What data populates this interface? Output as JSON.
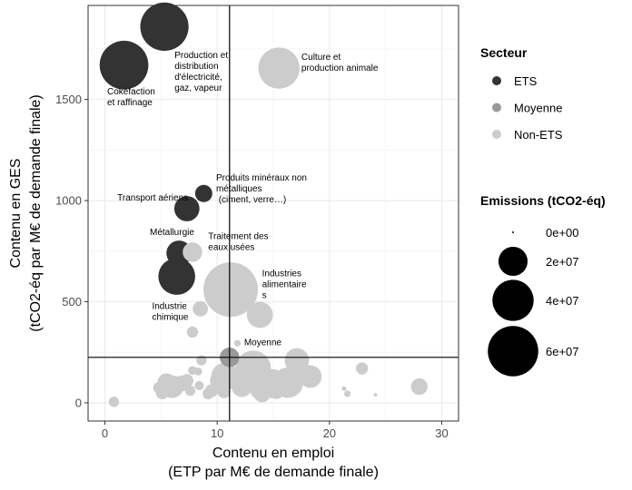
{
  "chart_data": {
    "type": "scatter",
    "xlabel": [
      "Contenu en emploi",
      "(ETP par M€ de demande finale)"
    ],
    "ylabel": [
      "Contenu en GES",
      "(tCO2-éq par M€ de demande finale)"
    ],
    "xlim": [
      -1.5,
      31.5
    ],
    "ylim": [
      -90,
      1965
    ],
    "xticks": [
      0,
      10,
      20,
      30
    ],
    "yticks": [
      0,
      500,
      1000,
      1500
    ],
    "grid": true,
    "reference_lines": {
      "vline_x": 11.1,
      "hline_y": 225
    },
    "colors": {
      "ETS": "#333333",
      "Moyenne": "#999999",
      "Non-ETS": "#cccccc"
    },
    "size_scale": {
      "min_value": 0,
      "max_value": 70000000
    },
    "points": [
      {
        "x": 5.3,
        "y": 1860,
        "emissions": 55000000,
        "secteur": "ETS"
      },
      {
        "x": 1.7,
        "y": 1670,
        "emissions": 56000000,
        "secteur": "ETS"
      },
      {
        "x": 15.5,
        "y": 1655,
        "emissions": 40000000,
        "secteur": "Non-ETS"
      },
      {
        "x": 8.8,
        "y": 1035,
        "emissions": 7000000,
        "secteur": "ETS"
      },
      {
        "x": 7.3,
        "y": 960,
        "emissions": 15000000,
        "secteur": "ETS"
      },
      {
        "x": 6.6,
        "y": 740,
        "emissions": 15000000,
        "secteur": "ETS"
      },
      {
        "x": 7.8,
        "y": 745,
        "emissions": 9000000,
        "secteur": "Non-ETS"
      },
      {
        "x": 6.4,
        "y": 625,
        "emissions": 32000000,
        "secteur": "ETS"
      },
      {
        "x": 11.2,
        "y": 560,
        "emissions": 70000000,
        "secteur": "Non-ETS"
      },
      {
        "x": 13.8,
        "y": 435,
        "emissions": 16000000,
        "secteur": "Non-ETS"
      },
      {
        "x": 8.5,
        "y": 465,
        "emissions": 5500000,
        "secteur": "Non-ETS"
      },
      {
        "x": 7.8,
        "y": 350,
        "emissions": 3000000,
        "secteur": "Non-ETS"
      },
      {
        "x": 11.1,
        "y": 225,
        "emissions": 9000000,
        "secteur": "Moyenne"
      },
      {
        "x": 11.8,
        "y": 295,
        "emissions": 1000000,
        "secteur": "Non-ETS"
      },
      {
        "x": 13.2,
        "y": 170,
        "emissions": 30000000,
        "secteur": "Non-ETS"
      },
      {
        "x": 17.1,
        "y": 210,
        "emissions": 14000000,
        "secteur": "Non-ETS"
      },
      {
        "x": 10.7,
        "y": 130,
        "emissions": 18000000,
        "secteur": "Non-ETS"
      },
      {
        "x": 16.3,
        "y": 100,
        "emissions": 22000000,
        "secteur": "Non-ETS"
      },
      {
        "x": 14.9,
        "y": 95,
        "emissions": 20000000,
        "secteur": "Non-ETS"
      },
      {
        "x": 18.3,
        "y": 130,
        "emissions": 12000000,
        "secteur": "Non-ETS"
      },
      {
        "x": 13.8,
        "y": 65,
        "emissions": 9000000,
        "secteur": "Non-ETS"
      },
      {
        "x": 5.5,
        "y": 100,
        "emissions": 8000000,
        "secteur": "Non-ETS"
      },
      {
        "x": 6.0,
        "y": 80,
        "emissions": 12000000,
        "secteur": "Non-ETS"
      },
      {
        "x": 6.8,
        "y": 95,
        "emissions": 6000000,
        "secteur": "Non-ETS"
      },
      {
        "x": 5.1,
        "y": 50,
        "emissions": 4000000,
        "secteur": "Non-ETS"
      },
      {
        "x": 4.8,
        "y": 75,
        "emissions": 3000000,
        "secteur": "Non-ETS"
      },
      {
        "x": 7.3,
        "y": 110,
        "emissions": 4000000,
        "secteur": "Non-ETS"
      },
      {
        "x": 7.6,
        "y": 60,
        "emissions": 2500000,
        "secteur": "Non-ETS"
      },
      {
        "x": 8.4,
        "y": 85,
        "emissions": 2000000,
        "secteur": "Non-ETS"
      },
      {
        "x": 8.6,
        "y": 210,
        "emissions": 2500000,
        "secteur": "Non-ETS"
      },
      {
        "x": 7.8,
        "y": 160,
        "emissions": 1800000,
        "secteur": "Non-ETS"
      },
      {
        "x": 8.3,
        "y": 155,
        "emissions": 1500000,
        "secteur": "Non-ETS"
      },
      {
        "x": 9.5,
        "y": 60,
        "emissions": 4000000,
        "secteur": "Non-ETS"
      },
      {
        "x": 10.0,
        "y": 110,
        "emissions": 5000000,
        "secteur": "Non-ETS"
      },
      {
        "x": 10.6,
        "y": 55,
        "emissions": 4000000,
        "secteur": "Non-ETS"
      },
      {
        "x": 9.2,
        "y": 45,
        "emissions": 3000000,
        "secteur": "Non-ETS"
      },
      {
        "x": 12.2,
        "y": 80,
        "emissions": 10000000,
        "secteur": "Non-ETS"
      },
      {
        "x": 12.6,
        "y": 150,
        "emissions": 6000000,
        "secteur": "Non-ETS"
      },
      {
        "x": 14.0,
        "y": 45,
        "emissions": 7000000,
        "secteur": "Non-ETS"
      },
      {
        "x": 15.3,
        "y": 55,
        "emissions": 5000000,
        "secteur": "Non-ETS"
      },
      {
        "x": 22.9,
        "y": 170,
        "emissions": 3500000,
        "secteur": "Non-ETS"
      },
      {
        "x": 28.0,
        "y": 80,
        "emissions": 6500000,
        "secteur": "Non-ETS"
      },
      {
        "x": 21.6,
        "y": 45,
        "emissions": 1000000,
        "secteur": "Non-ETS"
      },
      {
        "x": 21.3,
        "y": 70,
        "emissions": 500000,
        "secteur": "Non-ETS"
      },
      {
        "x": 24.1,
        "y": 40,
        "emissions": 300000,
        "secteur": "Non-ETS"
      },
      {
        "x": 0.8,
        "y": 5,
        "emissions": 2500000,
        "secteur": "Non-ETS"
      }
    ],
    "annotations": [
      {
        "lines": [
          "Cokéfaction",
          "et raffinage"
        ],
        "x": 0.2,
        "y": 1525
      },
      {
        "lines": [
          "Production et",
          "distribution",
          "d'électricité,",
          "gaz, vapeur"
        ],
        "x": 6.2,
        "y": 1705
      },
      {
        "lines": [
          "Culture et",
          "production animale"
        ],
        "x": 17.5,
        "y": 1695
      },
      {
        "lines": [
          "Produits minéraux  non",
          "métalliques",
          " (ciment, verre…)"
        ],
        "x": 9.9,
        "y": 1100
      },
      {
        "lines": [
          "Transport aériens"
        ],
        "x": 1.1,
        "y": 1000
      },
      {
        "lines": [
          "Métallurgie"
        ],
        "x": 4.0,
        "y": 830
      },
      {
        "lines": [
          "Traitement des",
          "eaux usées"
        ],
        "x": 9.2,
        "y": 810
      },
      {
        "lines": [
          "Industries",
          "alimentaire",
          "s"
        ],
        "x": 14.0,
        "y": 625
      },
      {
        "lines": [
          "Industrie",
          "chimique"
        ],
        "x": 4.2,
        "y": 465
      },
      {
        "lines": [
          "Moyenne"
        ],
        "x": 12.4,
        "y": 285
      }
    ],
    "legend": {
      "placement": "right",
      "color_title": "Secteur",
      "color_items": [
        "ETS",
        "Moyenne",
        "Non-ETS"
      ],
      "size_title": "Emissions (tCO2-éq)",
      "size_items": [
        {
          "label": "0e+00",
          "value": 0
        },
        {
          "label": "2e+07",
          "value": 20000000
        },
        {
          "label": "4e+07",
          "value": 40000000
        },
        {
          "label": "6e+07",
          "value": 60000000
        }
      ]
    }
  }
}
